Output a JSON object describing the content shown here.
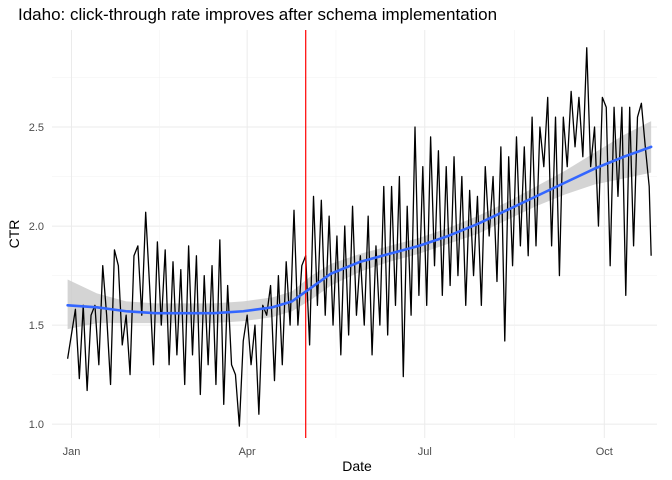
{
  "chart_data": {
    "type": "line",
    "title": "Idaho: click-through rate improves after schema implementation",
    "xlabel": "Date",
    "ylabel": "CTR",
    "x_ticks": [
      {
        "label": "Jan",
        "date": "2023-01-01"
      },
      {
        "label": "Apr",
        "date": "2023-04-01"
      },
      {
        "label": "Jul",
        "date": "2023-07-01"
      },
      {
        "label": "Oct",
        "date": "2023-10-01"
      }
    ],
    "x_range": [
      "2022-12-22",
      "2023-10-28"
    ],
    "y_ticks": [
      1.0,
      1.5,
      2.0,
      2.5
    ],
    "ylim": [
      0.93,
      2.99
    ],
    "grid": true,
    "intervention": {
      "date": "2023-05-01",
      "color": "#ff0000"
    },
    "series": [
      {
        "role": "observed",
        "color": "#000000",
        "points": [
          [
            "2022-12-30",
            1.33
          ],
          [
            "2023-01-03",
            1.58
          ],
          [
            "2023-01-05",
            1.23
          ],
          [
            "2023-01-07",
            1.6
          ],
          [
            "2023-01-09",
            1.17
          ],
          [
            "2023-01-11",
            1.55
          ],
          [
            "2023-01-13",
            1.6
          ],
          [
            "2023-01-15",
            1.3
          ],
          [
            "2023-01-17",
            1.8
          ],
          [
            "2023-01-19",
            1.55
          ],
          [
            "2023-01-21",
            1.2
          ],
          [
            "2023-01-23",
            1.88
          ],
          [
            "2023-01-25",
            1.8
          ],
          [
            "2023-01-27",
            1.4
          ],
          [
            "2023-01-29",
            1.55
          ],
          [
            "2023-01-31",
            1.25
          ],
          [
            "2023-02-02",
            1.85
          ],
          [
            "2023-02-04",
            1.9
          ],
          [
            "2023-02-06",
            1.55
          ],
          [
            "2023-02-08",
            2.07
          ],
          [
            "2023-02-10",
            1.7
          ],
          [
            "2023-02-12",
            1.3
          ],
          [
            "2023-02-14",
            1.92
          ],
          [
            "2023-02-16",
            1.5
          ],
          [
            "2023-02-18",
            1.88
          ],
          [
            "2023-02-20",
            1.3
          ],
          [
            "2023-02-22",
            1.82
          ],
          [
            "2023-02-24",
            1.35
          ],
          [
            "2023-02-26",
            1.78
          ],
          [
            "2023-02-28",
            1.2
          ],
          [
            "2023-03-02",
            1.9
          ],
          [
            "2023-03-04",
            1.35
          ],
          [
            "2023-03-06",
            1.85
          ],
          [
            "2023-03-08",
            1.15
          ],
          [
            "2023-03-10",
            1.75
          ],
          [
            "2023-03-12",
            1.3
          ],
          [
            "2023-03-14",
            1.8
          ],
          [
            "2023-03-16",
            1.2
          ],
          [
            "2023-03-18",
            1.93
          ],
          [
            "2023-03-20",
            1.1
          ],
          [
            "2023-03-22",
            1.7
          ],
          [
            "2023-03-24",
            1.3
          ],
          [
            "2023-03-26",
            1.25
          ],
          [
            "2023-03-28",
            0.99
          ],
          [
            "2023-03-30",
            1.42
          ],
          [
            "2023-04-01",
            1.55
          ],
          [
            "2023-04-03",
            1.3
          ],
          [
            "2023-04-05",
            1.5
          ],
          [
            "2023-04-07",
            1.05
          ],
          [
            "2023-04-09",
            1.6
          ],
          [
            "2023-04-11",
            1.55
          ],
          [
            "2023-04-13",
            1.7
          ],
          [
            "2023-04-15",
            1.22
          ],
          [
            "2023-04-17",
            1.75
          ],
          [
            "2023-04-19",
            1.3
          ],
          [
            "2023-04-21",
            1.82
          ],
          [
            "2023-04-23",
            1.5
          ],
          [
            "2023-04-25",
            2.08
          ],
          [
            "2023-04-27",
            1.5
          ],
          [
            "2023-04-29",
            1.8
          ],
          [
            "2023-05-01",
            1.85
          ],
          [
            "2023-05-03",
            1.4
          ],
          [
            "2023-05-05",
            2.15
          ],
          [
            "2023-05-07",
            1.6
          ],
          [
            "2023-05-09",
            2.13
          ],
          [
            "2023-05-11",
            1.55
          ],
          [
            "2023-05-13",
            2.05
          ],
          [
            "2023-05-15",
            1.5
          ],
          [
            "2023-05-17",
            1.95
          ],
          [
            "2023-05-19",
            1.35
          ],
          [
            "2023-05-21",
            2.0
          ],
          [
            "2023-05-23",
            1.45
          ],
          [
            "2023-05-25",
            2.1
          ],
          [
            "2023-05-27",
            1.55
          ],
          [
            "2023-05-29",
            1.85
          ],
          [
            "2023-05-31",
            1.5
          ],
          [
            "2023-06-02",
            2.05
          ],
          [
            "2023-06-04",
            1.35
          ],
          [
            "2023-06-06",
            1.9
          ],
          [
            "2023-06-08",
            1.5
          ],
          [
            "2023-06-10",
            2.2
          ],
          [
            "2023-06-12",
            1.45
          ],
          [
            "2023-06-14",
            2.2
          ],
          [
            "2023-06-16",
            1.6
          ],
          [
            "2023-06-18",
            2.25
          ],
          [
            "2023-06-20",
            1.24
          ],
          [
            "2023-06-22",
            2.1
          ],
          [
            "2023-06-24",
            1.55
          ],
          [
            "2023-06-26",
            2.5
          ],
          [
            "2023-06-28",
            1.65
          ],
          [
            "2023-06-30",
            2.3
          ],
          [
            "2023-07-02",
            1.6
          ],
          [
            "2023-07-04",
            2.45
          ],
          [
            "2023-07-06",
            1.8
          ],
          [
            "2023-07-08",
            2.38
          ],
          [
            "2023-07-10",
            1.65
          ],
          [
            "2023-07-12",
            2.3
          ],
          [
            "2023-07-14",
            1.7
          ],
          [
            "2023-07-16",
            2.35
          ],
          [
            "2023-07-18",
            1.75
          ],
          [
            "2023-07-20",
            2.25
          ],
          [
            "2023-07-22",
            1.6
          ],
          [
            "2023-07-24",
            2.18
          ],
          [
            "2023-07-26",
            1.75
          ],
          [
            "2023-07-28",
            2.15
          ],
          [
            "2023-07-30",
            1.6
          ],
          [
            "2023-08-01",
            2.3
          ],
          [
            "2023-08-03",
            1.95
          ],
          [
            "2023-08-05",
            2.25
          ],
          [
            "2023-08-07",
            1.72
          ],
          [
            "2023-08-09",
            2.4
          ],
          [
            "2023-08-11",
            1.42
          ],
          [
            "2023-08-13",
            2.35
          ],
          [
            "2023-08-15",
            1.8
          ],
          [
            "2023-08-17",
            2.45
          ],
          [
            "2023-08-19",
            1.9
          ],
          [
            "2023-08-21",
            2.4
          ],
          [
            "2023-08-23",
            1.85
          ],
          [
            "2023-08-25",
            2.55
          ],
          [
            "2023-08-27",
            1.9
          ],
          [
            "2023-08-29",
            2.5
          ],
          [
            "2023-08-31",
            2.3
          ],
          [
            "2023-09-02",
            2.65
          ],
          [
            "2023-09-04",
            1.9
          ],
          [
            "2023-09-06",
            2.55
          ],
          [
            "2023-09-08",
            1.75
          ],
          [
            "2023-09-10",
            2.55
          ],
          [
            "2023-09-12",
            2.3
          ],
          [
            "2023-09-14",
            2.68
          ],
          [
            "2023-09-16",
            2.4
          ],
          [
            "2023-09-18",
            2.65
          ],
          [
            "2023-09-20",
            2.35
          ],
          [
            "2023-09-22",
            2.9
          ],
          [
            "2023-09-24",
            2.3
          ],
          [
            "2023-09-26",
            2.5
          ],
          [
            "2023-09-28",
            2.0
          ],
          [
            "2023-09-30",
            2.65
          ],
          [
            "2023-10-02",
            2.6
          ],
          [
            "2023-10-04",
            1.8
          ],
          [
            "2023-10-06",
            2.6
          ],
          [
            "2023-10-08",
            2.15
          ],
          [
            "2023-10-10",
            2.6
          ],
          [
            "2023-10-12",
            1.65
          ],
          [
            "2023-10-14",
            2.6
          ],
          [
            "2023-10-16",
            1.9
          ],
          [
            "2023-10-18",
            2.55
          ],
          [
            "2023-10-20",
            2.62
          ],
          [
            "2023-10-22",
            2.4
          ],
          [
            "2023-10-24",
            2.2
          ],
          [
            "2023-10-25",
            1.85
          ]
        ]
      },
      {
        "role": "smooth",
        "color": "#3366ff",
        "band_color": "#cccccc",
        "points": [
          [
            "2022-12-30",
            1.6,
            1.48,
            1.73
          ],
          [
            "2023-01-14",
            1.59,
            1.51,
            1.66
          ],
          [
            "2023-01-29",
            1.57,
            1.51,
            1.62
          ],
          [
            "2023-02-13",
            1.56,
            1.51,
            1.61
          ],
          [
            "2023-02-28",
            1.56,
            1.51,
            1.61
          ],
          [
            "2023-03-15",
            1.56,
            1.51,
            1.61
          ],
          [
            "2023-03-30",
            1.57,
            1.52,
            1.62
          ],
          [
            "2023-04-14",
            1.59,
            1.54,
            1.64
          ],
          [
            "2023-04-24",
            1.62,
            1.57,
            1.67
          ],
          [
            "2023-05-04",
            1.69,
            1.63,
            1.75
          ],
          [
            "2023-05-14",
            1.76,
            1.7,
            1.81
          ],
          [
            "2023-05-29",
            1.82,
            1.77,
            1.86
          ],
          [
            "2023-06-13",
            1.86,
            1.82,
            1.9
          ],
          [
            "2023-06-28",
            1.9,
            1.86,
            1.94
          ],
          [
            "2023-07-13",
            1.95,
            1.91,
            1.99
          ],
          [
            "2023-07-28",
            2.01,
            1.96,
            2.05
          ],
          [
            "2023-08-12",
            2.08,
            2.03,
            2.12
          ],
          [
            "2023-08-27",
            2.15,
            2.1,
            2.2
          ],
          [
            "2023-09-11",
            2.22,
            2.16,
            2.28
          ],
          [
            "2023-09-26",
            2.29,
            2.21,
            2.37
          ],
          [
            "2023-10-11",
            2.35,
            2.24,
            2.46
          ],
          [
            "2023-10-25",
            2.4,
            2.27,
            2.53
          ]
        ]
      }
    ]
  }
}
